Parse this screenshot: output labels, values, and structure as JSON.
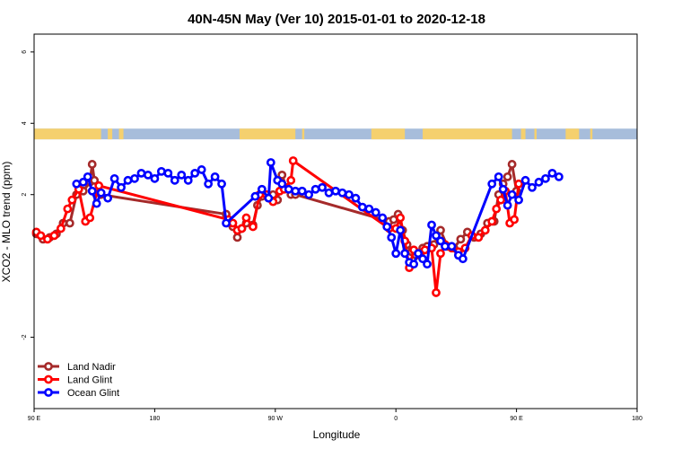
{
  "chart_data": {
    "type": "line",
    "title": "40N-45N May (Ver 10)   2015-01-01 to 2020-12-18",
    "xlabel": "Longitude",
    "ylabel": "XCO2 - MLO trend (ppm)",
    "xlim": [
      -90,
      180
    ],
    "ylim": [
      -4,
      6.5
    ],
    "x_ticks": [
      {
        "value": -90,
        "label": "90 E"
      },
      {
        "value": -36,
        "label": "180"
      },
      {
        "value": 18,
        "label": "90 W"
      },
      {
        "value": 72,
        "label": "0"
      },
      {
        "value": 126,
        "label": "90 E"
      },
      {
        "value": 180,
        "label": "180"
      }
    ],
    "y_ticks": [
      {
        "value": -2,
        "label": "-2"
      },
      {
        "value": 2,
        "label": "2"
      },
      {
        "value": 4,
        "label": "4"
      },
      {
        "value": 6,
        "label": "6"
      }
    ],
    "grid": false,
    "legend_position": "bottom-left",
    "land_ocean_bar": {
      "y_range": [
        3.55,
        3.85
      ],
      "land_color": "#f5d06e",
      "ocean_color": "#a7bddb",
      "land_x_ranges": [
        [
          -90,
          -60
        ],
        [
          -57,
          -55
        ],
        [
          -52,
          -50
        ],
        [
          2,
          27
        ],
        [
          30,
          31
        ],
        [
          61,
          76
        ],
        [
          84,
          124
        ],
        [
          128,
          130
        ],
        [
          134,
          135
        ],
        [
          148,
          154
        ],
        [
          159,
          160
        ]
      ]
    },
    "series": [
      {
        "name": "Land Nadir",
        "color": "#a52a2a",
        "points": [
          [
            -89,
            0.9
          ],
          [
            -86,
            0.75
          ],
          [
            -83,
            0.8
          ],
          [
            -80,
            0.9
          ],
          [
            -77,
            1.2
          ],
          [
            -74,
            1.2
          ],
          [
            -71,
            2.0
          ],
          [
            -68,
            2.1
          ],
          [
            -65,
            2.35
          ],
          [
            -64,
            2.85
          ],
          [
            -63,
            2.4
          ],
          [
            -60,
            2.0
          ],
          [
            -4,
            1.45
          ],
          [
            -1,
            1.1
          ],
          [
            1,
            0.8
          ],
          [
            3,
            1.05
          ],
          [
            5,
            1.2
          ],
          [
            8,
            1.15
          ],
          [
            10,
            1.7
          ],
          [
            12,
            1.95
          ],
          [
            15,
            1.9
          ],
          [
            17,
            2.0
          ],
          [
            19,
            1.85
          ],
          [
            21,
            2.55
          ],
          [
            23,
            2.2
          ],
          [
            25,
            2.0
          ],
          [
            27,
            2.0
          ],
          [
            69,
            1.25
          ],
          [
            71,
            1.3
          ],
          [
            73,
            1.45
          ],
          [
            75,
            1.0
          ],
          [
            77,
            0.6
          ],
          [
            79,
            0.4
          ],
          [
            81,
            0.3
          ],
          [
            84,
            0.5
          ],
          [
            86,
            0.55
          ],
          [
            89,
            0.6
          ],
          [
            92,
            1.0
          ],
          [
            95,
            0.55
          ],
          [
            98,
            0.5
          ],
          [
            101,
            0.75
          ],
          [
            104,
            0.95
          ],
          [
            107,
            0.8
          ],
          [
            110,
            0.9
          ],
          [
            113,
            1.2
          ],
          [
            116,
            1.25
          ],
          [
            118,
            2.0
          ],
          [
            120,
            2.3
          ],
          [
            122,
            2.5
          ],
          [
            124,
            2.85
          ],
          [
            126,
            2.1
          ]
        ]
      },
      {
        "name": "Land Glint",
        "color": "#ff0000",
        "points": [
          [
            -89,
            0.95
          ],
          [
            -87,
            0.85
          ],
          [
            -84,
            0.75
          ],
          [
            -81,
            0.85
          ],
          [
            -78,
            1.05
          ],
          [
            -75,
            1.6
          ],
          [
            -73,
            1.85
          ],
          [
            -70,
            2.15
          ],
          [
            -67,
            1.25
          ],
          [
            -65,
            1.35
          ],
          [
            -61,
            2.25
          ],
          [
            -3,
            1.3
          ],
          [
            -1,
            1.2
          ],
          [
            1,
            1.0
          ],
          [
            3,
            1.05
          ],
          [
            5,
            1.35
          ],
          [
            8,
            1.1
          ],
          [
            11,
            2.0
          ],
          [
            14,
            2.0
          ],
          [
            17,
            1.8
          ],
          [
            20,
            2.1
          ],
          [
            22,
            2.15
          ],
          [
            25,
            2.4
          ],
          [
            26,
            2.95
          ],
          [
            69,
            1.05
          ],
          [
            72,
            1.05
          ],
          [
            74,
            1.35
          ],
          [
            76,
            0.7
          ],
          [
            78,
            -0.05
          ],
          [
            80,
            0.45
          ],
          [
            83,
            0.3
          ],
          [
            85,
            0.45
          ],
          [
            88,
            0.5
          ],
          [
            90,
            -0.75
          ],
          [
            92,
            0.35
          ],
          [
            94,
            0.6
          ],
          [
            97,
            0.5
          ],
          [
            100,
            0.4
          ],
          [
            103,
            0.5
          ],
          [
            106,
            0.85
          ],
          [
            109,
            0.8
          ],
          [
            112,
            1.0
          ],
          [
            115,
            1.25
          ],
          [
            117,
            1.6
          ],
          [
            119,
            1.85
          ],
          [
            121,
            2.1
          ],
          [
            123,
            1.2
          ],
          [
            125,
            1.3
          ],
          [
            127,
            2.3
          ]
        ]
      },
      {
        "name": "Ocean Glint",
        "color": "#0000ff",
        "points": [
          [
            -71,
            2.3
          ],
          [
            -68,
            2.35
          ],
          [
            -66,
            2.5
          ],
          [
            -64,
            2.1
          ],
          [
            -62,
            1.75
          ],
          [
            -60,
            2.05
          ],
          [
            -57,
            1.9
          ],
          [
            -54,
            2.45
          ],
          [
            -51,
            2.2
          ],
          [
            -48,
            2.4
          ],
          [
            -45,
            2.45
          ],
          [
            -42,
            2.6
          ],
          [
            -39,
            2.55
          ],
          [
            -36,
            2.45
          ],
          [
            -33,
            2.65
          ],
          [
            -30,
            2.6
          ],
          [
            -27,
            2.4
          ],
          [
            -24,
            2.55
          ],
          [
            -21,
            2.4
          ],
          [
            -18,
            2.6
          ],
          [
            -15,
            2.7
          ],
          [
            -12,
            2.3
          ],
          [
            -9,
            2.5
          ],
          [
            -6,
            2.3
          ],
          [
            -4,
            1.2
          ],
          [
            9,
            1.95
          ],
          [
            12,
            2.15
          ],
          [
            15,
            1.9
          ],
          [
            16,
            2.9
          ],
          [
            19,
            2.4
          ],
          [
            21,
            2.3
          ],
          [
            24,
            2.15
          ],
          [
            27,
            2.1
          ],
          [
            30,
            2.1
          ],
          [
            33,
            2.0
          ],
          [
            36,
            2.15
          ],
          [
            39,
            2.2
          ],
          [
            42,
            2.05
          ],
          [
            45,
            2.1
          ],
          [
            48,
            2.05
          ],
          [
            51,
            2.0
          ],
          [
            54,
            1.9
          ],
          [
            57,
            1.65
          ],
          [
            60,
            1.6
          ],
          [
            63,
            1.5
          ],
          [
            66,
            1.35
          ],
          [
            68,
            1.1
          ],
          [
            70,
            0.8
          ],
          [
            72,
            0.35
          ],
          [
            74,
            1.0
          ],
          [
            76,
            0.35
          ],
          [
            78,
            0.1
          ],
          [
            80,
            0.05
          ],
          [
            82,
            0.35
          ],
          [
            84,
            0.2
          ],
          [
            86,
            0.05
          ],
          [
            88,
            1.15
          ],
          [
            90,
            0.85
          ],
          [
            92,
            0.7
          ],
          [
            94,
            0.55
          ],
          [
            97,
            0.55
          ],
          [
            100,
            0.3
          ],
          [
            102,
            0.2
          ],
          [
            115,
            2.3
          ],
          [
            118,
            2.5
          ],
          [
            120,
            2.15
          ],
          [
            122,
            1.7
          ],
          [
            124,
            2.0
          ],
          [
            127,
            1.85
          ],
          [
            130,
            2.4
          ],
          [
            133,
            2.2
          ],
          [
            136,
            2.35
          ],
          [
            139,
            2.45
          ],
          [
            142,
            2.6
          ],
          [
            145,
            2.5
          ]
        ]
      }
    ]
  }
}
